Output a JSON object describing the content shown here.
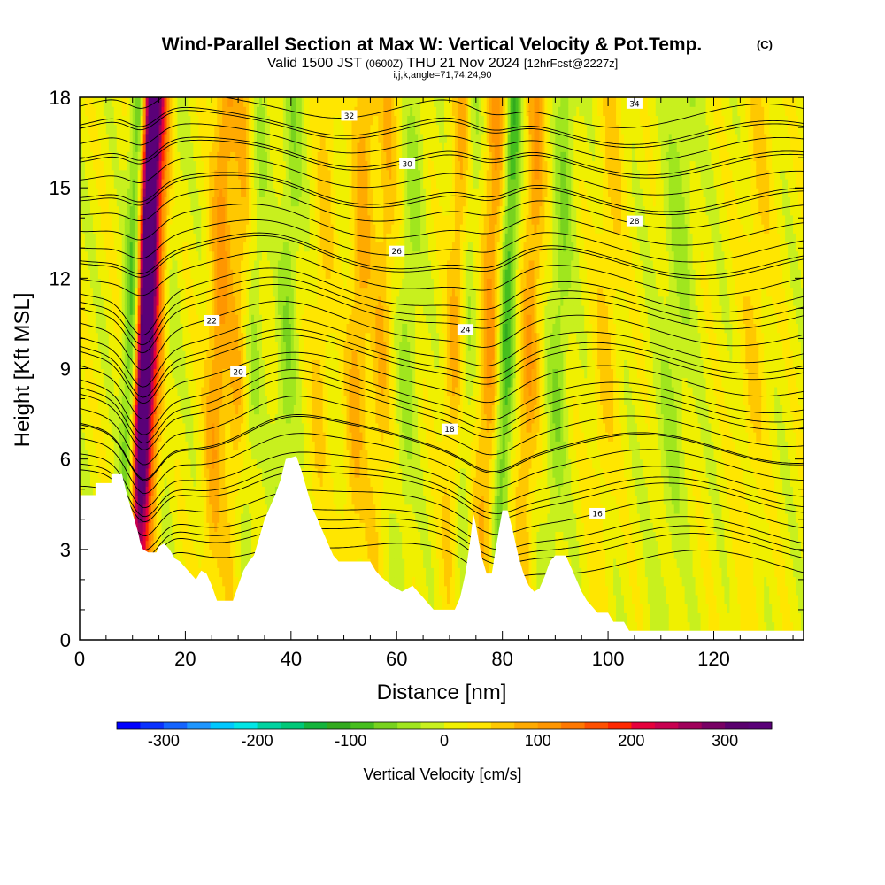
{
  "chart_data": {
    "type": "heatmap",
    "title": "Wind-Parallel Section at Max W: Vertical Velocity & Pot.Temp.",
    "title_mark": "(C)",
    "subtitle": {
      "valid": "Valid 1500 JST",
      "utc": "(0600Z)",
      "date": "THU 21 Nov 2024",
      "forecast": "[12hrFcst@2227z]"
    },
    "indices": "i,j,k,angle=71,74,24,90",
    "xlabel": "Distance [nm]",
    "ylabel": "Height [Kft MSL]",
    "xlim": [
      0,
      137
    ],
    "ylim": [
      0,
      18
    ],
    "xticks": [
      0,
      20,
      40,
      60,
      80,
      100,
      120
    ],
    "yticks": [
      0,
      3,
      6,
      9,
      12,
      15,
      18
    ],
    "colorbar": {
      "label": "Vertical Velocity [cm/s]",
      "ticks": [
        -300,
        -200,
        -100,
        0,
        100,
        200,
        300
      ],
      "min": -350,
      "max": 350,
      "step": 25,
      "colors": [
        "#0000ff",
        "#0a32ff",
        "#1464ff",
        "#1e96ff",
        "#00c8ff",
        "#00e6e6",
        "#00d2a0",
        "#00c878",
        "#14b43c",
        "#32aa1e",
        "#46be1e",
        "#78d21e",
        "#a0e61e",
        "#c8f01e",
        "#f0f000",
        "#ffe600",
        "#ffc800",
        "#ffaa00",
        "#ff9600",
        "#ff7800",
        "#ff5000",
        "#ff2800",
        "#e6003c",
        "#c80050",
        "#a0005a",
        "#780064",
        "#5a006e",
        "#5a0078"
      ]
    },
    "velocity_columns": [
      {
        "x": 11.5,
        "w": 300,
        "width": 1.6
      },
      {
        "x": 12.5,
        "w": 180,
        "width": 3.5
      },
      {
        "x": 9.5,
        "w": -180,
        "width": 1.8
      },
      {
        "x": 16,
        "w": -60,
        "width": 2.0
      },
      {
        "x": 25.5,
        "w": 90,
        "width": 2.2
      },
      {
        "x": 29.5,
        "w": 60,
        "width": 2.0
      },
      {
        "x": 32,
        "w": -40,
        "width": 2.0
      },
      {
        "x": 38.5,
        "w": -50,
        "width": 2.0
      },
      {
        "x": 45,
        "w": 40,
        "width": 2.0
      },
      {
        "x": 52,
        "w": 70,
        "width": 2.2
      },
      {
        "x": 56.5,
        "w": 55,
        "width": 2.0
      },
      {
        "x": 61.5,
        "w": -40,
        "width": 2.0
      },
      {
        "x": 70.5,
        "w": 70,
        "width": 2.0
      },
      {
        "x": 72.5,
        "w": -45,
        "width": 1.8
      },
      {
        "x": 77,
        "w": 90,
        "width": 2.2
      },
      {
        "x": 80,
        "w": -110,
        "width": 1.6
      },
      {
        "x": 84.5,
        "w": 80,
        "width": 2.0
      },
      {
        "x": 90,
        "w": -55,
        "width": 2.0
      },
      {
        "x": 99,
        "w": 40,
        "width": 2.5
      },
      {
        "x": 112,
        "w": -40,
        "width": 3.0
      },
      {
        "x": 127,
        "w": 35,
        "width": 3.0
      }
    ],
    "terrain": [
      [
        0,
        4.8
      ],
      [
        3,
        4.8
      ],
      [
        3,
        5.2
      ],
      [
        6,
        5.2
      ],
      [
        6,
        5.5
      ],
      [
        8,
        5.5
      ],
      [
        9,
        4.8
      ],
      [
        10,
        4.2
      ],
      [
        11,
        3.6
      ],
      [
        11.5,
        3.2
      ],
      [
        12,
        3.0
      ],
      [
        13,
        2.9
      ],
      [
        14.5,
        2.9
      ],
      [
        15,
        3.1
      ],
      [
        16,
        3.2
      ],
      [
        17,
        3.0
      ],
      [
        18,
        2.7
      ],
      [
        19,
        2.6
      ],
      [
        20,
        2.4
      ],
      [
        21,
        2.2
      ],
      [
        22,
        2.0
      ],
      [
        23,
        2.3
      ],
      [
        24,
        2.2
      ],
      [
        25,
        1.8
      ],
      [
        26,
        1.3
      ],
      [
        29,
        1.3
      ],
      [
        30,
        1.8
      ],
      [
        31,
        2.3
      ],
      [
        32,
        2.6
      ],
      [
        33,
        2.8
      ],
      [
        34,
        3.4
      ],
      [
        35,
        4.0
      ],
      [
        36,
        4.4
      ],
      [
        37,
        4.8
      ],
      [
        38,
        5.3
      ],
      [
        39,
        6.0
      ],
      [
        41,
        6.1
      ],
      [
        42,
        5.6
      ],
      [
        43,
        5.0
      ],
      [
        44,
        4.4
      ],
      [
        45,
        4.0
      ],
      [
        46,
        3.6
      ],
      [
        47,
        3.2
      ],
      [
        48,
        2.8
      ],
      [
        49,
        2.6
      ],
      [
        55,
        2.6
      ],
      [
        56,
        2.3
      ],
      [
        57,
        2.1
      ],
      [
        59,
        1.8
      ],
      [
        61,
        1.6
      ],
      [
        63,
        1.8
      ],
      [
        64,
        1.6
      ],
      [
        65,
        1.4
      ],
      [
        66,
        1.2
      ],
      [
        67,
        1.0
      ],
      [
        71,
        1.0
      ],
      [
        72,
        1.4
      ],
      [
        73,
        2.2
      ],
      [
        74,
        3.4
      ],
      [
        74.5,
        4.2
      ],
      [
        75,
        3.8
      ],
      [
        76,
        2.8
      ],
      [
        77,
        2.2
      ],
      [
        78,
        2.2
      ],
      [
        79,
        3.3
      ],
      [
        80,
        4.3
      ],
      [
        81,
        4.3
      ],
      [
        82,
        3.6
      ],
      [
        83,
        2.8
      ],
      [
        84,
        2.2
      ],
      [
        85,
        1.8
      ],
      [
        86,
        1.6
      ],
      [
        87,
        1.7
      ],
      [
        88,
        2.1
      ],
      [
        89,
        2.6
      ],
      [
        90,
        2.8
      ],
      [
        92,
        2.8
      ],
      [
        93,
        2.4
      ],
      [
        94,
        2.0
      ],
      [
        95,
        1.6
      ],
      [
        96,
        1.3
      ],
      [
        97,
        1.1
      ],
      [
        98,
        0.9
      ],
      [
        100,
        0.9
      ],
      [
        101,
        0.6
      ],
      [
        103,
        0.6
      ],
      [
        104,
        0.3
      ],
      [
        137,
        0.3
      ]
    ],
    "theta_contours": [
      {
        "label": "16",
        "z0": 3.8,
        "x": 98,
        "y": 4.2
      },
      {
        "label": "18",
        "z0": 5.4,
        "x": 70,
        "y": 7.0
      },
      {
        "label": "20",
        "z0": 6.8,
        "x": 30,
        "y": 8.9
      },
      {
        "label": "22",
        "z0": 8.2,
        "x": 25,
        "y": 10.6
      },
      {
        "label": "24",
        "z0": 9.8,
        "x": 73,
        "y": 10.3
      },
      {
        "label": "26",
        "z0": 11.5,
        "x": 60,
        "y": 12.9
      },
      {
        "label": "28",
        "z0": 13.0,
        "x": 105,
        "y": 13.9
      },
      {
        "label": "30",
        "z0": 15.0,
        "x": 62,
        "y": 15.8
      },
      {
        "label": "32",
        "z0": 16.3,
        "x": 51,
        "y": 17.4
      },
      {
        "label": "34",
        "z0": 17.2,
        "x": 105,
        "y": 17.8
      }
    ]
  }
}
